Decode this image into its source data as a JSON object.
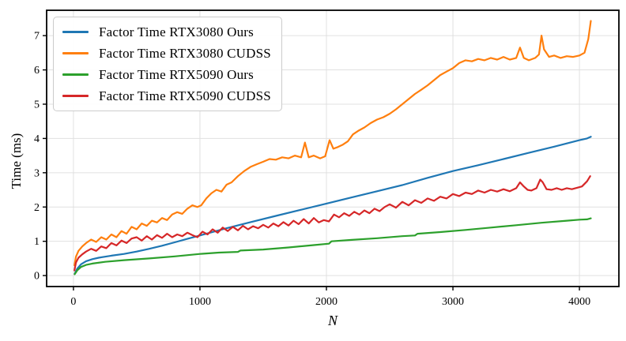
{
  "figure": {
    "background": "#ffffff",
    "grid_color": "#e0e0e0",
    "spine_color": "#000000",
    "legend_border_color": "#cccccc"
  },
  "chart_data": {
    "type": "line",
    "title": "",
    "xlabel": "N",
    "ylabel": "Time (ms)",
    "xlim": [
      -212,
      4312
    ],
    "ylim": [
      -0.32,
      7.74
    ],
    "xticks": [
      0,
      1000,
      2000,
      3000,
      4000
    ],
    "yticks": [
      0,
      1,
      2,
      3,
      4,
      5,
      6,
      7
    ],
    "grid": true,
    "legend_position": "upper-left",
    "series": [
      {
        "name": "Factor Time RTX3080 Ours",
        "color": "#1f77b4",
        "x": [
          10,
          30,
          60,
          100,
          150,
          200,
          300,
          400,
          500,
          600,
          700,
          800,
          900,
          1000,
          1200,
          1400,
          1600,
          1800,
          2000,
          2200,
          2400,
          2600,
          2800,
          3000,
          3200,
          3400,
          3600,
          3800,
          4000,
          4060,
          4090
        ],
        "y": [
          0.05,
          0.2,
          0.33,
          0.42,
          0.48,
          0.52,
          0.58,
          0.63,
          0.7,
          0.78,
          0.87,
          0.97,
          1.07,
          1.17,
          1.37,
          1.56,
          1.74,
          1.92,
          2.1,
          2.28,
          2.46,
          2.64,
          2.85,
          3.05,
          3.22,
          3.4,
          3.58,
          3.76,
          3.95,
          4.0,
          4.05
        ]
      },
      {
        "name": "Factor Time RTX3080 CUDSS",
        "color": "#ff7f0e",
        "x": [
          8,
          20,
          40,
          70,
          100,
          140,
          180,
          220,
          260,
          300,
          340,
          380,
          420,
          460,
          500,
          540,
          580,
          620,
          660,
          700,
          740,
          780,
          820,
          860,
          900,
          940,
          980,
          1010,
          1050,
          1090,
          1130,
          1170,
          1210,
          1250,
          1300,
          1350,
          1400,
          1450,
          1500,
          1550,
          1600,
          1650,
          1700,
          1750,
          1800,
          1830,
          1860,
          1900,
          1950,
          1990,
          2025,
          2055,
          2090,
          2130,
          2170,
          2210,
          2250,
          2300,
          2350,
          2400,
          2450,
          2500,
          2550,
          2600,
          2650,
          2700,
          2750,
          2800,
          2850,
          2900,
          2950,
          3000,
          3050,
          3100,
          3150,
          3200,
          3250,
          3300,
          3350,
          3400,
          3450,
          3500,
          3530,
          3560,
          3600,
          3650,
          3680,
          3700,
          3720,
          3760,
          3800,
          3850,
          3900,
          3950,
          4000,
          4040,
          4070,
          4090
        ],
        "y": [
          0.3,
          0.55,
          0.72,
          0.85,
          0.95,
          1.05,
          0.98,
          1.12,
          1.05,
          1.2,
          1.12,
          1.3,
          1.22,
          1.42,
          1.35,
          1.52,
          1.45,
          1.6,
          1.55,
          1.68,
          1.62,
          1.78,
          1.85,
          1.8,
          1.95,
          2.05,
          2.0,
          2.05,
          2.25,
          2.4,
          2.5,
          2.45,
          2.65,
          2.72,
          2.9,
          3.05,
          3.17,
          3.25,
          3.32,
          3.4,
          3.38,
          3.45,
          3.42,
          3.5,
          3.45,
          3.88,
          3.45,
          3.5,
          3.42,
          3.48,
          3.95,
          3.7,
          3.75,
          3.82,
          3.92,
          4.12,
          4.22,
          4.32,
          4.45,
          4.55,
          4.62,
          4.72,
          4.85,
          5.0,
          5.15,
          5.3,
          5.42,
          5.55,
          5.7,
          5.85,
          5.95,
          6.05,
          6.2,
          6.28,
          6.25,
          6.32,
          6.28,
          6.35,
          6.3,
          6.38,
          6.3,
          6.35,
          6.65,
          6.35,
          6.28,
          6.35,
          6.45,
          7.0,
          6.6,
          6.38,
          6.42,
          6.35,
          6.4,
          6.38,
          6.42,
          6.5,
          6.9,
          7.43
        ]
      },
      {
        "name": "Factor Time RTX5090 Ours",
        "color": "#2ca02c",
        "x": [
          10,
          30,
          60,
          100,
          150,
          250,
          400,
          600,
          800,
          1000,
          1150,
          1300,
          1320,
          1500,
          1700,
          1900,
          2020,
          2040,
          2200,
          2400,
          2600,
          2700,
          2720,
          2900,
          3100,
          3300,
          3500,
          3700,
          3900,
          4000,
          4060,
          4090
        ],
        "y": [
          0.04,
          0.15,
          0.25,
          0.31,
          0.35,
          0.4,
          0.45,
          0.5,
          0.56,
          0.63,
          0.67,
          0.69,
          0.73,
          0.76,
          0.82,
          0.89,
          0.93,
          1.0,
          1.04,
          1.09,
          1.15,
          1.17,
          1.22,
          1.27,
          1.33,
          1.4,
          1.47,
          1.54,
          1.6,
          1.63,
          1.64,
          1.67
        ]
      },
      {
        "name": "Factor Time RTX5090 CUDSS",
        "color": "#d62728",
        "x": [
          8,
          20,
          40,
          70,
          100,
          140,
          180,
          220,
          260,
          300,
          340,
          380,
          420,
          460,
          500,
          540,
          580,
          620,
          660,
          700,
          740,
          780,
          820,
          860,
          900,
          940,
          980,
          1020,
          1060,
          1100,
          1140,
          1180,
          1220,
          1260,
          1300,
          1340,
          1380,
          1420,
          1460,
          1500,
          1540,
          1580,
          1620,
          1660,
          1700,
          1740,
          1780,
          1820,
          1860,
          1900,
          1940,
          1980,
          2020,
          2060,
          2100,
          2140,
          2180,
          2220,
          2260,
          2300,
          2340,
          2380,
          2420,
          2460,
          2500,
          2550,
          2600,
          2650,
          2700,
          2750,
          2800,
          2850,
          2900,
          2950,
          3000,
          3050,
          3100,
          3150,
          3200,
          3250,
          3300,
          3350,
          3400,
          3450,
          3500,
          3530,
          3560,
          3590,
          3620,
          3660,
          3690,
          3710,
          3740,
          3780,
          3820,
          3860,
          3900,
          3940,
          3980,
          4020,
          4060,
          4085
        ],
        "y": [
          0.15,
          0.38,
          0.52,
          0.62,
          0.7,
          0.78,
          0.72,
          0.85,
          0.8,
          0.95,
          0.88,
          1.02,
          0.95,
          1.08,
          1.12,
          1.02,
          1.15,
          1.05,
          1.18,
          1.1,
          1.22,
          1.12,
          1.2,
          1.15,
          1.25,
          1.18,
          1.12,
          1.28,
          1.2,
          1.35,
          1.25,
          1.4,
          1.3,
          1.42,
          1.32,
          1.45,
          1.35,
          1.44,
          1.38,
          1.48,
          1.4,
          1.52,
          1.44,
          1.56,
          1.46,
          1.6,
          1.5,
          1.65,
          1.52,
          1.68,
          1.55,
          1.62,
          1.58,
          1.78,
          1.7,
          1.82,
          1.74,
          1.86,
          1.78,
          1.9,
          1.82,
          1.95,
          1.88,
          2.0,
          2.08,
          1.98,
          2.15,
          2.05,
          2.2,
          2.12,
          2.25,
          2.18,
          2.3,
          2.25,
          2.38,
          2.32,
          2.42,
          2.38,
          2.48,
          2.42,
          2.5,
          2.45,
          2.52,
          2.46,
          2.55,
          2.72,
          2.6,
          2.5,
          2.48,
          2.55,
          2.8,
          2.72,
          2.52,
          2.5,
          2.55,
          2.5,
          2.55,
          2.52,
          2.56,
          2.6,
          2.75,
          2.9
        ]
      }
    ]
  }
}
